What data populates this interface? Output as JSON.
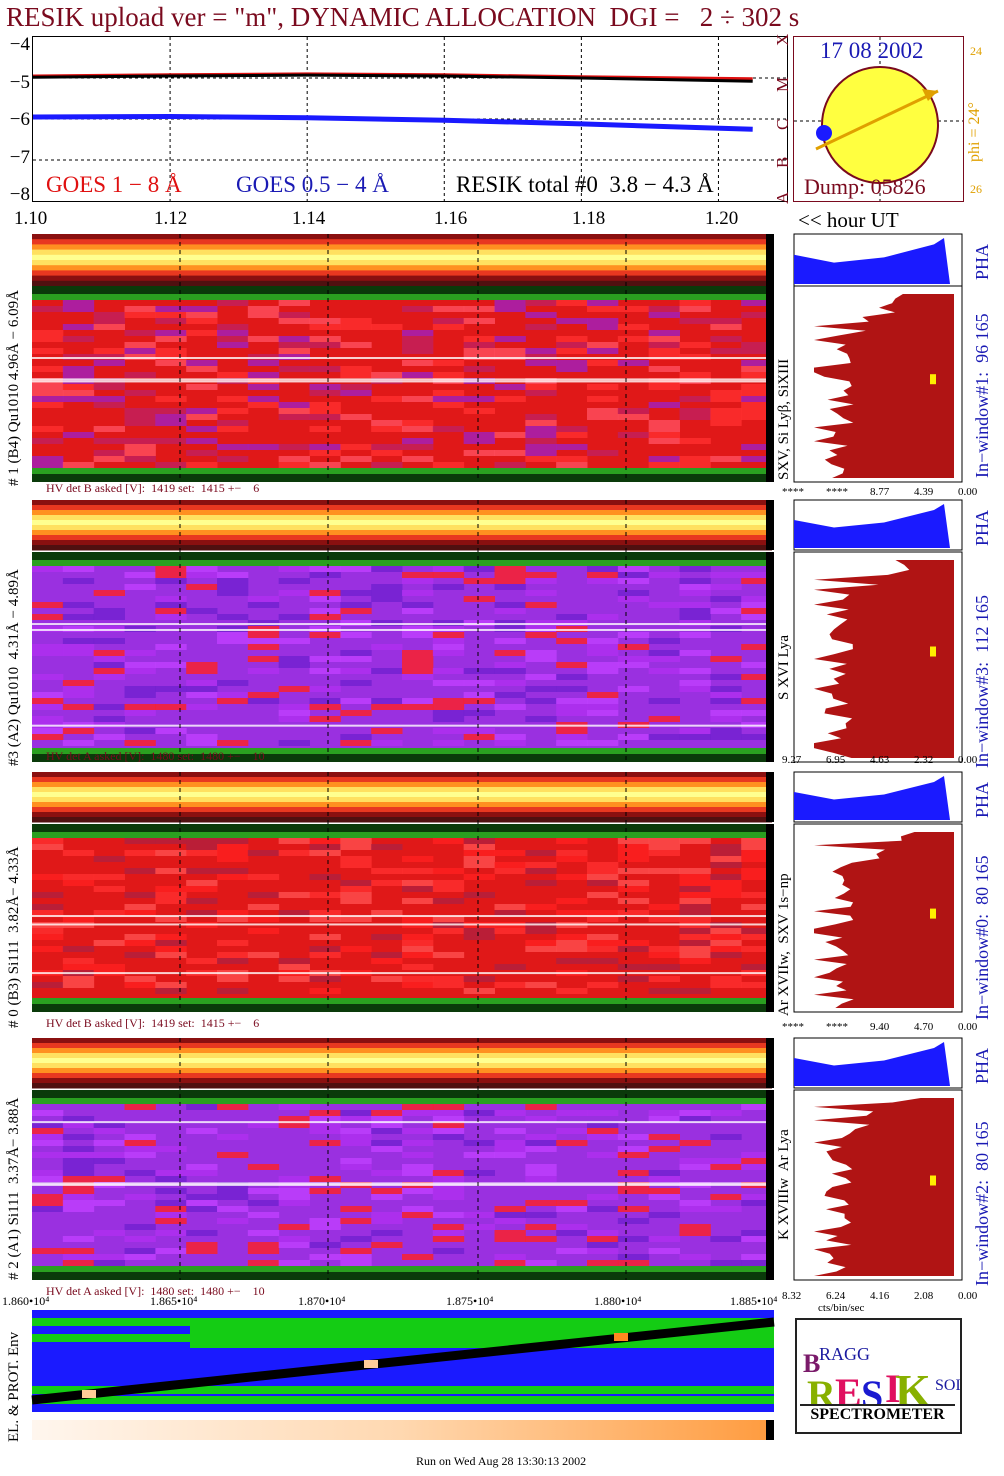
{
  "title": "RESIK upload ver = \"m\", DYNAMIC ALLOCATION  DGI =   2 ÷ 302 s",
  "goes": {
    "y_ticks": [
      "−4",
      "−5",
      "−6",
      "−7",
      "−8"
    ],
    "legend_goes_long": "GOES 1 − 8 Å",
    "legend_goes_short": "GOES 0.5 − 4 Å",
    "legend_resik": "RESIK total #0  3.8 − 4.3 Å",
    "side_letters": [
      "X",
      "M",
      "C",
      "B",
      "A"
    ]
  },
  "orbit": {
    "date": "17 08 2002",
    "dump": "Dump: 05826",
    "phi": "phi = 24°",
    "num_top": "24",
    "num_bottom": "26"
  },
  "time_axis": {
    "ticks": [
      "1.10",
      "1.12",
      "1.14",
      "1.16",
      "1.18",
      "1.20"
    ],
    "unit_label": "<< hour UT"
  },
  "detectors": [
    {
      "label": "# 1 (B4) Qu1010 4.96Å − 6.09Å",
      "lines": "SXV, Si Lyβ, SiXIII",
      "window": "In−window#1:  96 165",
      "pha": "PHA",
      "hv": "HV det B asked [V]:  1419 set:  1415 +−    6",
      "pha_ticks": [
        "****",
        "****",
        "8.77",
        "4.39",
        "0.00"
      ]
    },
    {
      "label": "#3 (A2) Qu1010  4.31Å − 4.89Å",
      "lines": "S XVI Lya",
      "window": "In−window#3:  112 165",
      "pha": "PHA",
      "hv": "HV det A asked [V]:  1480 set:  1480 +−    10",
      "pha_ticks": [
        "9.27",
        "6.95",
        "4.63",
        "2.32",
        "0.00"
      ]
    },
    {
      "label": "# 0 (B3) Si111  3.82Å− 4.33Å",
      "lines": "Ar XVIIw,  SXV 1s−np",
      "window": "In−window#0:  80 165",
      "pha": "PHA",
      "hv": "HV det B asked [V]:  1419 set:  1415 +−    6",
      "pha_ticks": [
        "****",
        "****",
        "9.40",
        "4.70",
        "0.00"
      ]
    },
    {
      "label": "# 2 (A1) Si111  3.37Å− 3.88Å",
      "lines": "K XVIIIw  Ar Lya",
      "window": "In−window#2:  80 165",
      "pha": "PHA",
      "hv": "HV det A asked [V]:  1480 set:  1480 +−    10",
      "pha_ticks": [
        "8.32",
        "6.24",
        "4.16",
        "2.08",
        "0.00"
      ]
    }
  ],
  "bottom": {
    "x_ticks": [
      "1.860•10⁴",
      "1.865•10⁴",
      "1.870•10⁴",
      "1.875•10⁴",
      "1.880•10⁴",
      "1.885•10⁴"
    ],
    "env_label": "EL. & PROT. Env",
    "cts_label": "cts/bin/sec"
  },
  "logo": {
    "letters": "BRAGG RESIK SOLAR",
    "word": "SPECTROMETER"
  },
  "footer": "Run on Wed Aug 28 13:30:13 2002",
  "colors": {
    "title": "#7a0a1e",
    "goes_long": "#e01010",
    "goes_short": "#1a1ab4",
    "pha_fill": "#b01414",
    "pha_blue": "#1a1aff"
  },
  "chart_data": {
    "type": "line",
    "title": "RESIK upload ver = \"m\", DYNAMIC ALLOCATION  DGI =   2 ÷ 302 s",
    "x": [
      1.1,
      1.12,
      1.14,
      1.16,
      1.18,
      1.205
    ],
    "ylim": [
      -8,
      -4
    ],
    "xlim": [
      1.1,
      1.21
    ],
    "series": [
      {
        "name": "GOES 1 − 8 Å",
        "values": [
          -4.95,
          -4.92,
          -4.9,
          -4.92,
          -4.97,
          -5.02
        ]
      },
      {
        "name": "GOES 0.5 − 4 Å",
        "values": [
          -5.95,
          -5.94,
          -5.97,
          -6.03,
          -6.12,
          -6.25
        ]
      },
      {
        "name": "RESIK total #0  3.8 − 4.3 Å",
        "values": [
          -4.98,
          -4.95,
          -4.93,
          -4.95,
          -5.0,
          -5.08
        ]
      }
    ]
  }
}
